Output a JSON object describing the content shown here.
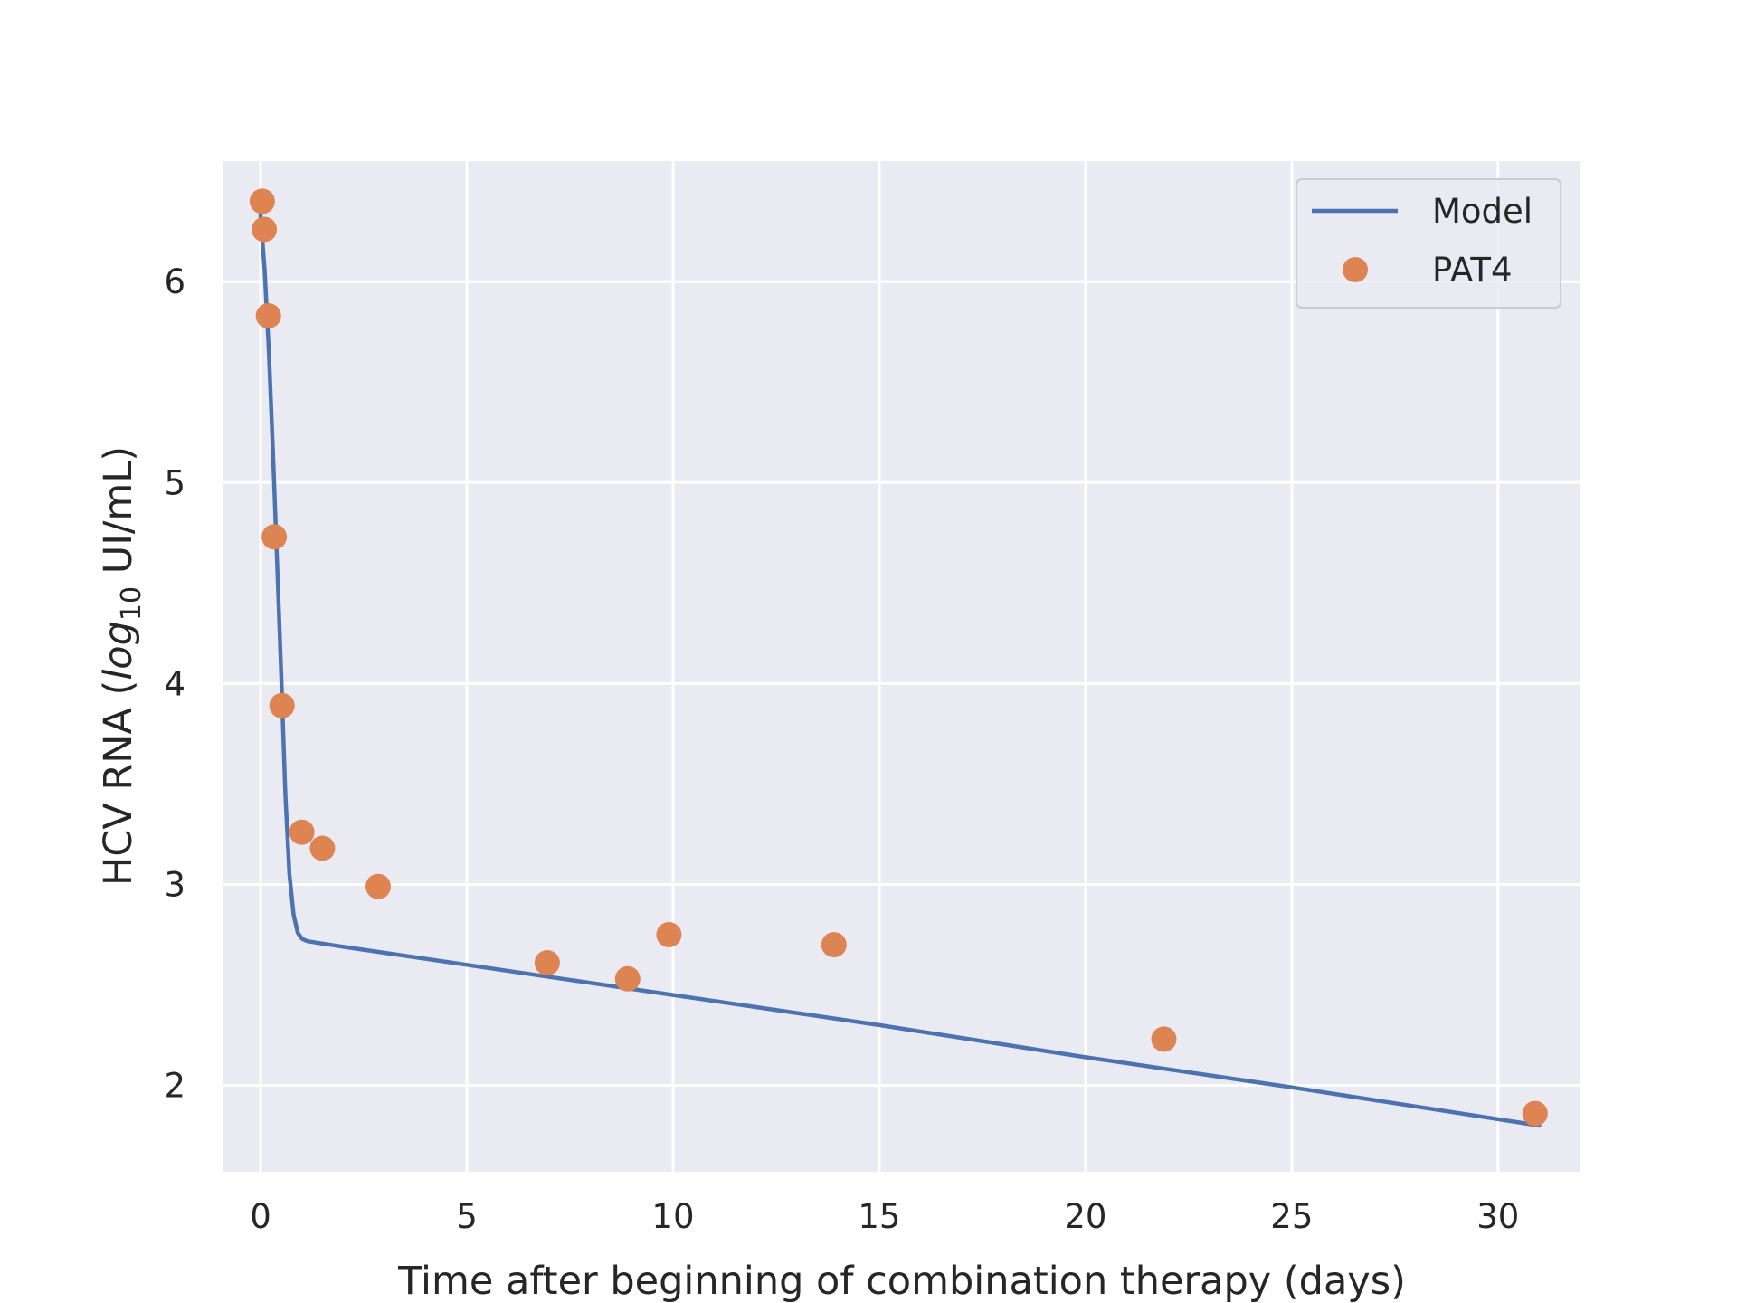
{
  "chart_data": {
    "type": "line",
    "xlabel": "Time after beginning of combination therapy (days)",
    "ylabel_prefix": "HCV RNA (",
    "ylabel_log": "log",
    "ylabel_sub": "10",
    "ylabel_suffix": " UI/mL)",
    "xlim": [
      -0.9,
      32.0
    ],
    "ylim": [
      1.57,
      6.6
    ],
    "xticks": [
      0,
      5,
      10,
      15,
      20,
      25,
      30
    ],
    "yticks": [
      2,
      3,
      4,
      5,
      6
    ],
    "grid": true,
    "legend_position": "top-right",
    "colors": {
      "background": "#eaeaf2",
      "grid": "#ffffff",
      "model": "#4c72b0",
      "data": "#dd8452"
    },
    "series": [
      {
        "name": "Model",
        "kind": "line",
        "x": [
          0.0,
          0.1,
          0.2,
          0.3,
          0.4,
          0.5,
          0.6,
          0.7,
          0.8,
          0.9,
          1.0,
          1.1,
          1.2,
          2,
          5,
          8,
          10,
          15,
          20,
          25,
          31
        ],
        "y": [
          6.33,
          6.05,
          5.65,
          5.15,
          4.6,
          4.05,
          3.45,
          3.05,
          2.85,
          2.76,
          2.73,
          2.72,
          2.715,
          2.69,
          2.6,
          2.51,
          2.45,
          2.3,
          2.14,
          1.99,
          1.8
        ]
      },
      {
        "name": "PAT4",
        "kind": "scatter",
        "x": [
          0.04,
          0.09,
          0.19,
          0.33,
          0.52,
          1.0,
          1.5,
          2.85,
          6.95,
          8.9,
          9.9,
          13.9,
          21.9,
          30.9
        ],
        "y": [
          6.4,
          6.26,
          5.83,
          4.73,
          3.89,
          3.26,
          3.18,
          2.99,
          2.61,
          2.53,
          2.75,
          2.7,
          2.23,
          1.86
        ]
      }
    ]
  }
}
